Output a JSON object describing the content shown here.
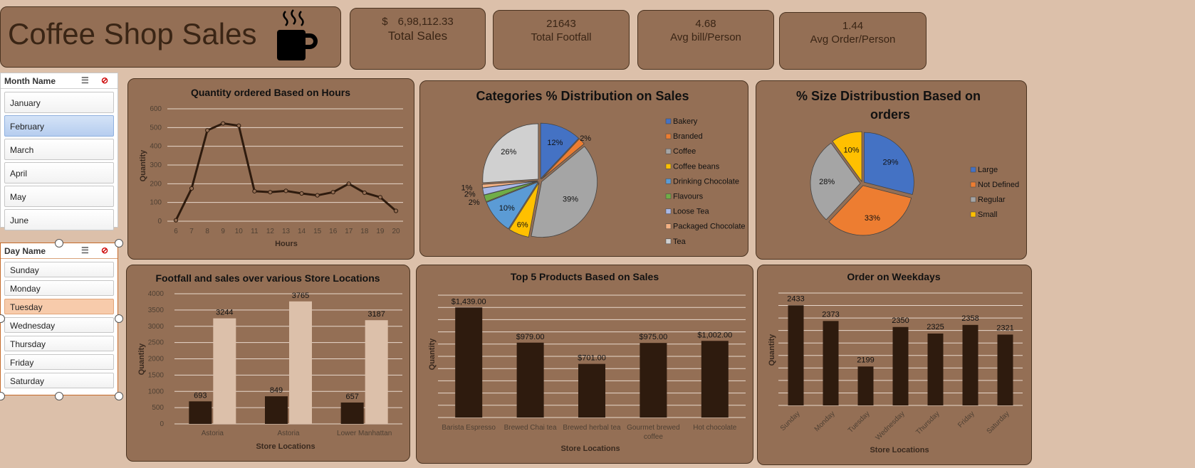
{
  "header": {
    "title": "Coffee Shop Sales"
  },
  "kpis": [
    {
      "currency": "$",
      "value": "6,98,112.33",
      "label": "Total Sales"
    },
    {
      "value": "21643",
      "label": "Total Footfall"
    },
    {
      "value": "4.68",
      "label": "Avg bill/Person"
    },
    {
      "value": "1.44",
      "label": "Avg Order/Person"
    }
  ],
  "slicers": {
    "month": {
      "title": "Month Name",
      "items": [
        "January",
        "February",
        "March",
        "April",
        "May",
        "June"
      ],
      "selected": "February"
    },
    "day": {
      "title": "Day Name",
      "items": [
        "Sunday",
        "Monday",
        "Tuesday",
        "Wednesday",
        "Thursday",
        "Friday",
        "Saturday"
      ],
      "selected": "Tuesday"
    }
  },
  "colors": {
    "background": "#dcc0aa",
    "panel": "#946f55",
    "dark_bar": "#2e1b0e",
    "light_bar": "#dcc0aa",
    "slicer_selected_blue": "#bcd3f2",
    "slicer_selected_peach": "#f7cbab"
  },
  "chart_data": [
    {
      "type": "line",
      "title": "Quantity ordered Based on Hours",
      "xlabel": "Hours",
      "ylabel": "Quantity",
      "x": [
        6,
        7,
        8,
        9,
        10,
        11,
        12,
        13,
        14,
        15,
        16,
        17,
        18,
        19,
        20
      ],
      "values": [
        5,
        175,
        485,
        522,
        510,
        160,
        155,
        162,
        148,
        138,
        155,
        200,
        152,
        128,
        55
      ],
      "ylim": [
        0,
        600
      ],
      "yticks": [
        0,
        100,
        200,
        300,
        400,
        500,
        600
      ],
      "grid": true
    },
    {
      "type": "pie",
      "title": "Categories % Distribution on Sales",
      "legend": "right",
      "slices": [
        {
          "name": "Bakery",
          "value": 12,
          "label": "12%",
          "color": "#4472c4"
        },
        {
          "name": "Branded",
          "value": 2,
          "label": "2%",
          "color": "#ed7d31"
        },
        {
          "name": "Coffee",
          "value": 39,
          "label": "39%",
          "color": "#a5a5a5"
        },
        {
          "name": "Coffee beans",
          "value": 6,
          "label": "6%",
          "color": "#ffc000"
        },
        {
          "name": "Drinking Chocolate",
          "value": 10,
          "label": "10%",
          "color": "#5b9bd5"
        },
        {
          "name": "Flavours",
          "value": 2,
          "label": "2%",
          "color": "#70ad47"
        },
        {
          "name": "Loose Tea",
          "value": 2,
          "label": "2%",
          "color": "#a9b8e6"
        },
        {
          "name": "Packaged Chocolate",
          "value": 1,
          "label": "1%",
          "color": "#f4b183"
        },
        {
          "name": "Tea",
          "value": 26,
          "label": "26%",
          "color": "#d0d0d0"
        }
      ]
    },
    {
      "type": "pie",
      "title": "% Size Distribustion Based on orders",
      "legend": "right",
      "slices": [
        {
          "name": "Large",
          "value": 29,
          "label": "29%",
          "color": "#4472c4"
        },
        {
          "name": "Not Defined",
          "value": 33,
          "label": "33%",
          "color": "#ed7d31"
        },
        {
          "name": "Regular",
          "value": 28,
          "label": "28%",
          "color": "#a5a5a5"
        },
        {
          "name": "Small",
          "value": 10,
          "label": "10%",
          "color": "#ffc000"
        }
      ]
    },
    {
      "type": "bar",
      "title": "Footfall and sales over various Store Locations",
      "xlabel": "Store Locations",
      "ylabel": "Quantity",
      "categories": [
        "Astoria",
        "Astoria",
        "Lower Manhattan"
      ],
      "series": [
        {
          "values": [
            693,
            849,
            657
          ],
          "labels": [
            "693",
            "849",
            "657"
          ]
        },
        {
          "values": [
            3244,
            3765,
            3187
          ],
          "labels": [
            "3244",
            "3765",
            "3187"
          ]
        }
      ],
      "ylim": [
        0,
        4000
      ],
      "yticks": [
        0,
        500,
        1000,
        1500,
        2000,
        2500,
        3000,
        3500,
        4000
      ],
      "grid": true
    },
    {
      "type": "bar",
      "title": "Top 5 Products Based on Sales",
      "xlabel": "Store Locations",
      "ylabel": "Quantity",
      "categories": [
        "Barista Espresso",
        "Brewed Chai tea",
        "Brewed herbal tea",
        "Gourmet brewed coffee",
        "Hot chocolate"
      ],
      "values": [
        1439,
        979,
        701,
        975,
        1002
      ],
      "labels": [
        "$1,439.00",
        "$979.00",
        "$701.00",
        "$975.00",
        "$1,002.00"
      ],
      "ylim": [
        0,
        1600
      ],
      "grid": true
    },
    {
      "type": "bar",
      "title": "Order on Weekdays",
      "xlabel": "Store Locations",
      "ylabel": "Quantity",
      "categories": [
        "Sunday",
        "Monday",
        "Tuesday",
        "Wednesday",
        "Thursday",
        "Friday",
        "Saturday"
      ],
      "values": [
        2433,
        2373,
        2199,
        2350,
        2325,
        2358,
        2321
      ],
      "labels": [
        "2433",
        "2373",
        "2199",
        "2350",
        "2325",
        "2358",
        "2321"
      ],
      "ylim": [
        2050,
        2480
      ],
      "grid": true
    }
  ]
}
